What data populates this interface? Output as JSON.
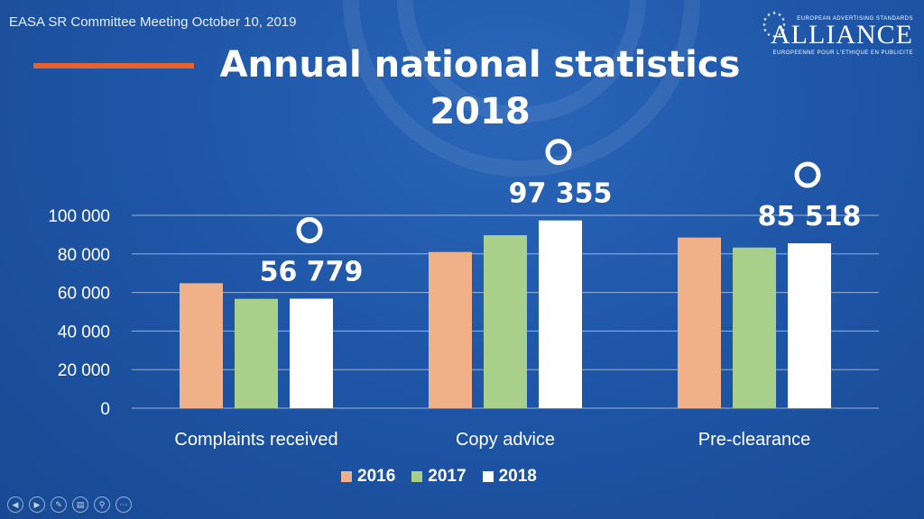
{
  "header": {
    "text": "EASA SR Committee Meeting October 10, 2019"
  },
  "title": {
    "line1": "Annual national statistics",
    "line2": "2018"
  },
  "logo": {
    "top": "EUROPEAN ADVERTISING STANDARDS",
    "word": "ALLIANCE",
    "bottom": "EUROPEENNE POUR L'ETHIQUE EN PUBLICITE"
  },
  "colors": {
    "accent": "#e8622c",
    "s2016": "#f0b088",
    "s2017": "#a8d08a",
    "s2018": "#ffffff"
  },
  "chart_data": {
    "type": "bar",
    "categories": [
      "Complaints received",
      "Copy advice",
      "Pre-clearance"
    ],
    "series": [
      {
        "name": "2016",
        "values": [
          64800,
          81000,
          88500
        ]
      },
      {
        "name": "2017",
        "values": [
          56700,
          89700,
          83300
        ]
      },
      {
        "name": "2018",
        "values": [
          56779,
          97355,
          85518
        ]
      }
    ],
    "ylim": [
      0,
      100000
    ],
    "yticks": [
      0,
      20000,
      40000,
      60000,
      80000,
      100000
    ],
    "ytick_labels": [
      "0",
      "20 000",
      "40 000",
      "60 000",
      "80 000",
      "100 000"
    ],
    "data_labels": [
      "56 779",
      "97 355",
      "85 518"
    ],
    "grid": true,
    "legend_position": "bottom"
  },
  "nav": {
    "prev": "◀",
    "next": "▶",
    "pen": "✎",
    "slides": "▤",
    "zoom": "⚲",
    "more": "⋯"
  }
}
